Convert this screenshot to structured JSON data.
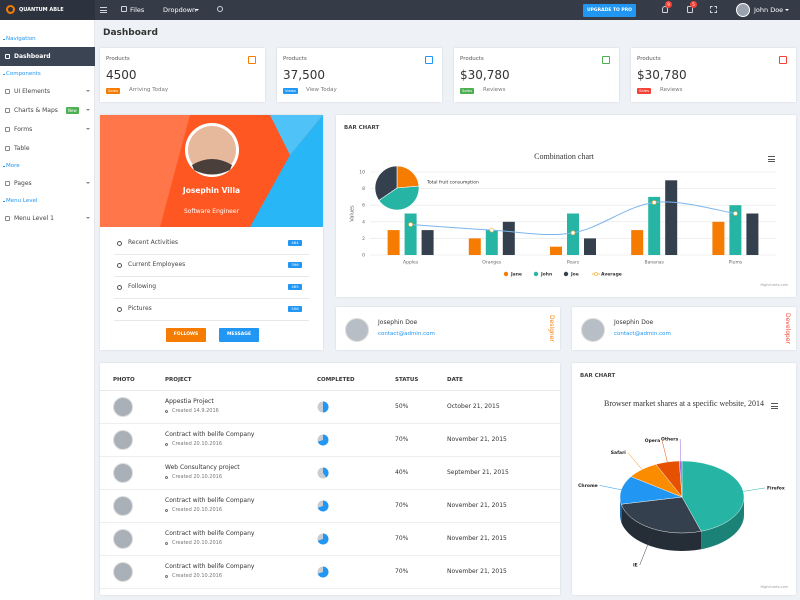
{
  "header": {
    "brand": "QUANTUM ABLE",
    "menu": [
      "Files",
      "Dropdown"
    ],
    "upgrade": "UPGRADE TO PRO",
    "notifications": [
      "9",
      "5"
    ],
    "user": "John Doe"
  },
  "sidebar": {
    "sections": [
      {
        "title": "Navigation",
        "items": [
          {
            "label": "Dashboard",
            "active": true
          }
        ]
      },
      {
        "title": "Components",
        "items": [
          {
            "label": "UI Elements",
            "submenu": true
          },
          {
            "label": "Charts & Maps",
            "badge": "New",
            "submenu": true
          },
          {
            "label": "Forms",
            "submenu": true
          },
          {
            "label": "Table"
          }
        ]
      },
      {
        "title": "More",
        "items": [
          {
            "label": "Pages",
            "submenu": true
          }
        ]
      },
      {
        "title": "Menu Level",
        "items": [
          {
            "label": "Menu Level 1",
            "submenu": true
          }
        ]
      }
    ]
  },
  "page_title": "Dashboard",
  "stats": [
    {
      "label": "Products",
      "value": "4500",
      "badge": "Sales",
      "note": "Arriving Today",
      "color": "#f57c00"
    },
    {
      "label": "Products",
      "value": "37,500",
      "badge": "Views",
      "note": "View Today",
      "color": "#2196f3"
    },
    {
      "label": "Products",
      "value": "$30,780",
      "badge": "Sales",
      "note": "Reviews",
      "color": "#4caf50"
    },
    {
      "label": "Products",
      "value": "$30,780",
      "badge": "Sales",
      "note": "Reviews",
      "color": "#f44336"
    }
  ],
  "profile": {
    "name": "Josephin Villa",
    "role": "Software Engineer",
    "items": [
      {
        "label": "Recent Activities",
        "count": "484"
      },
      {
        "label": "Current Employees",
        "count": "396"
      },
      {
        "label": "Following",
        "count": "485"
      },
      {
        "label": "Pictures",
        "count": "506"
      }
    ],
    "buttons": [
      {
        "label": "FOLLOWS",
        "color": "#f57c00"
      },
      {
        "label": "MESSAGE",
        "color": "#2196f3"
      }
    ]
  },
  "bar_card": {
    "title": "BAR CHART",
    "chart": {
      "type": "combo",
      "title": "Combination chart",
      "categories": [
        "Apples",
        "Oranges",
        "Pears",
        "Bananas",
        "Plums"
      ],
      "y_label": "Values",
      "ylim": [
        0,
        10
      ],
      "yticks": [
        0,
        2,
        4,
        6,
        8,
        10
      ],
      "grid": true,
      "series": [
        {
          "name": "Jane",
          "type": "column",
          "color": "#f57c00",
          "values": [
            3,
            2,
            1,
            3,
            4
          ]
        },
        {
          "name": "John",
          "type": "column",
          "color": "#26b5a5",
          "values": [
            5,
            3,
            5,
            7,
            6
          ]
        },
        {
          "name": "Joe",
          "type": "column",
          "color": "#34404d",
          "values": [
            3,
            4,
            2,
            9,
            5
          ]
        },
        {
          "name": "Average",
          "type": "spline",
          "color": "#7cb5ec",
          "values": [
            3.67,
            3,
            2.67,
            6.33,
            5
          ]
        }
      ],
      "pie": {
        "label": "Total fruit consumption",
        "values": [
          13,
          23,
          19
        ]
      },
      "credits": "Highcharts.com"
    }
  },
  "contacts": [
    {
      "name": "Josephin Doe",
      "email": "contact@admin.com",
      "role": "Designer",
      "color": "#f57c00"
    },
    {
      "name": "Josephin Doe",
      "email": "contact@admin.com",
      "role": "Developer",
      "color": "#f44336"
    }
  ],
  "table": {
    "columns": [
      "PHOTO",
      "PROJECT",
      "COMPLETED",
      "STATUS",
      "DATE"
    ],
    "rows": [
      {
        "project": "Appestia Project",
        "created": "Created 14.9.2016",
        "completed": 50,
        "status": "50%",
        "date": "October 21, 2015"
      },
      {
        "project": "Contract with belife Company",
        "created": "Created 20.10.2016",
        "completed": 70,
        "status": "70%",
        "date": "November 21, 2015"
      },
      {
        "project": "Web Consultancy project",
        "created": "Created 20.10.2016",
        "completed": 40,
        "status": "40%",
        "date": "September 21, 2015"
      },
      {
        "project": "Contract with belife Company",
        "created": "Created 20.10.2016",
        "completed": 70,
        "status": "70%",
        "date": "November 21, 2015"
      },
      {
        "project": "Contract with belife Company",
        "created": "Created 20.10.2016",
        "completed": 70,
        "status": "70%",
        "date": "November 21, 2015"
      },
      {
        "project": "Contract with belife Company",
        "created": "Created 20.10.2016",
        "completed": 70,
        "status": "70%",
        "date": "November 21, 2015"
      }
    ]
  },
  "pie_card": {
    "title": "BAR CHART",
    "chart": {
      "type": "pie",
      "title": "Browser market shares at a specific website, 2014",
      "categories": [
        "Firefox",
        "IE",
        "Chrome",
        "Safari",
        "Opera",
        "Others"
      ],
      "values": [
        45,
        26.8,
        12.8,
        8.5,
        6.2,
        0.7
      ],
      "colors": [
        "#26b5a5",
        "#34404d",
        "#2196f3",
        "#fb8c00",
        "#e65100",
        "#9c6ade"
      ],
      "credits": "Highcharts.com"
    }
  }
}
